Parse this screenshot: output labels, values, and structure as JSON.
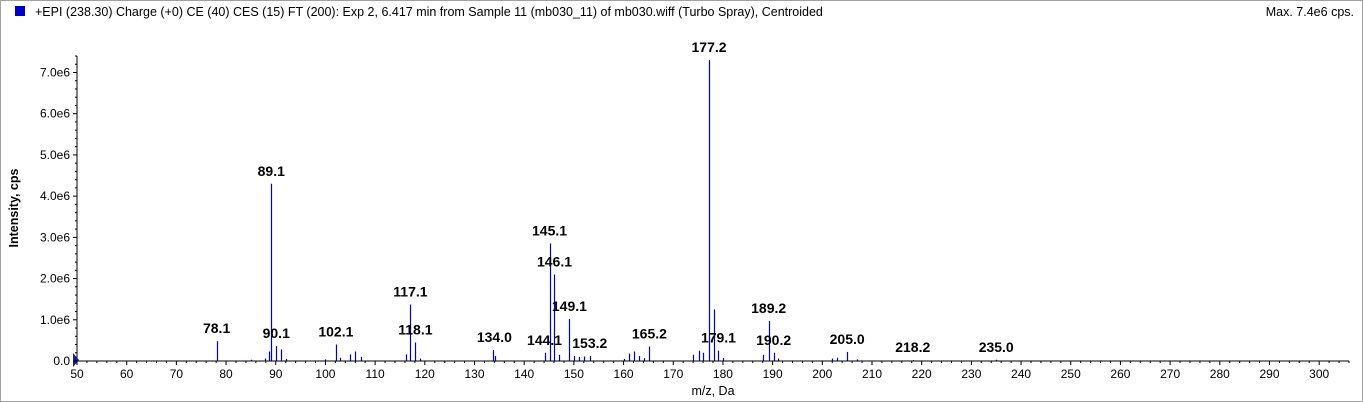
{
  "header": {
    "title": "+EPI (238.30) Charge (+0) CE (40) CES (15) FT (200): Exp 2, 6.417 min from Sample 11 (mb030_11) of mb030.wiff (Turbo Spray), Centroided",
    "max": "Max. 7.4e6 cps."
  },
  "colors": {
    "series": "#0000cc",
    "axis": "#000000",
    "frame": "#a0a0a0"
  },
  "chart_data": {
    "type": "bar",
    "title": "+EPI (238.30) Charge (+0) CE (40) CES (15) FT (200): Exp 2, 6.417 min from Sample 11 (mb030_11) of mb030.wiff (Turbo Spray), Centroided",
    "xlabel": "m/z, Da",
    "ylabel": "Intensity, cps",
    "xlim": [
      50,
      306
    ],
    "ylim": [
      0,
      7400000
    ],
    "grid": false,
    "x_ticks": [
      "50",
      "60",
      "70",
      "80",
      "90",
      "100",
      "110",
      "120",
      "130",
      "140",
      "150",
      "160",
      "170",
      "180",
      "190",
      "200",
      "210",
      "220",
      "230",
      "240",
      "250",
      "260",
      "270",
      "280",
      "290",
      "300"
    ],
    "y_ticks": [
      "0.0",
      "1.0e6",
      "2.0e6",
      "3.0e6",
      "4.0e6",
      "5.0e6",
      "6.0e6",
      "7.0e6"
    ],
    "peaks": [
      {
        "x": 78.1,
        "y": 480000
      },
      {
        "x": 85.0,
        "y": 30000
      },
      {
        "x": 87.9,
        "y": 60000
      },
      {
        "x": 88.6,
        "y": 230000
      },
      {
        "x": 89.1,
        "y": 4300000
      },
      {
        "x": 90.1,
        "y": 360000
      },
      {
        "x": 91.0,
        "y": 280000
      },
      {
        "x": 92.0,
        "y": 50000
      },
      {
        "x": 100.0,
        "y": 40000
      },
      {
        "x": 102.1,
        "y": 400000
      },
      {
        "x": 103.0,
        "y": 80000
      },
      {
        "x": 104.9,
        "y": 160000
      },
      {
        "x": 106.0,
        "y": 230000
      },
      {
        "x": 107.1,
        "y": 100000
      },
      {
        "x": 116.2,
        "y": 160000
      },
      {
        "x": 117.1,
        "y": 1370000
      },
      {
        "x": 118.1,
        "y": 450000
      },
      {
        "x": 119.0,
        "y": 60000
      },
      {
        "x": 133.8,
        "y": 270000
      },
      {
        "x": 134.2,
        "y": 120000
      },
      {
        "x": 144.1,
        "y": 200000
      },
      {
        "x": 145.1,
        "y": 2850000
      },
      {
        "x": 146.1,
        "y": 2100000
      },
      {
        "x": 147.0,
        "y": 150000
      },
      {
        "x": 149.1,
        "y": 1020000
      },
      {
        "x": 150.0,
        "y": 120000
      },
      {
        "x": 151.0,
        "y": 100000
      },
      {
        "x": 152.1,
        "y": 110000
      },
      {
        "x": 153.2,
        "y": 120000
      },
      {
        "x": 160.0,
        "y": 50000
      },
      {
        "x": 161.0,
        "y": 180000
      },
      {
        "x": 162.0,
        "y": 230000
      },
      {
        "x": 163.1,
        "y": 120000
      },
      {
        "x": 164.1,
        "y": 70000
      },
      {
        "x": 165.2,
        "y": 350000
      },
      {
        "x": 174.0,
        "y": 150000
      },
      {
        "x": 175.1,
        "y": 250000
      },
      {
        "x": 176.0,
        "y": 200000
      },
      {
        "x": 177.2,
        "y": 7300000
      },
      {
        "x": 178.2,
        "y": 1250000
      },
      {
        "x": 179.1,
        "y": 250000
      },
      {
        "x": 180.1,
        "y": 70000
      },
      {
        "x": 188.0,
        "y": 150000
      },
      {
        "x": 189.2,
        "y": 970000
      },
      {
        "x": 190.2,
        "y": 200000
      },
      {
        "x": 191.1,
        "y": 60000
      },
      {
        "x": 202.0,
        "y": 60000
      },
      {
        "x": 203.0,
        "y": 80000
      },
      {
        "x": 205.0,
        "y": 220000
      },
      {
        "x": 207.0,
        "y": 40000
      },
      {
        "x": 218.2,
        "y": 25000
      },
      {
        "x": 235.0,
        "y": 30000
      }
    ],
    "peak_labels": [
      "78.1",
      "89.1",
      "90.1",
      "102.1",
      "117.1",
      "118.1",
      "134.0",
      "144.1",
      "145.1",
      "146.1",
      "149.1",
      "153.2",
      "165.2",
      "177.2",
      "179.1",
      "189.2",
      "190.2",
      "205.0",
      "218.2",
      "235.0"
    ],
    "peak_label_x": [
      78.1,
      89.1,
      90.1,
      102.1,
      117.1,
      118.1,
      134.0,
      144.1,
      145.1,
      146.1,
      149.1,
      153.2,
      165.2,
      177.2,
      179.1,
      189.2,
      190.2,
      205.0,
      218.2,
      235.0
    ],
    "peak_label_y": [
      480000,
      4300000,
      360000,
      400000,
      1370000,
      450000,
      270000,
      200000,
      2850000,
      2100000,
      1020000,
      120000,
      350000,
      7300000,
      250000,
      970000,
      200000,
      220000,
      25000,
      30000
    ]
  }
}
